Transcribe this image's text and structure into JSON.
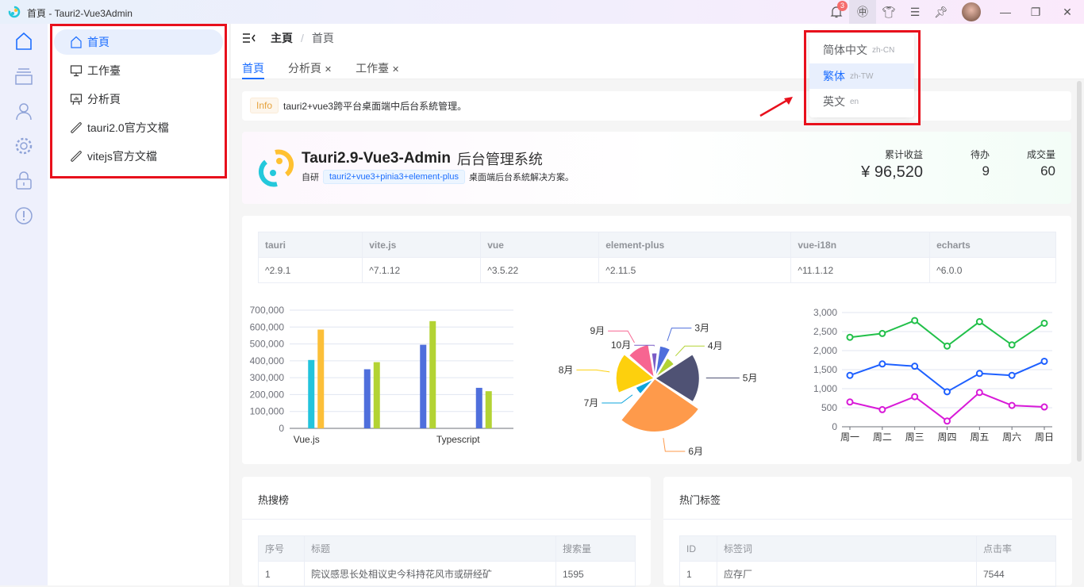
{
  "window": {
    "title": "首頁 - Tauri2-Vue3Admin",
    "notification_count": "3"
  },
  "toolbar": {
    "icons": [
      "bell-icon",
      "language-icon",
      "skin-icon",
      "settings-icon",
      "pin-icon",
      "avatar",
      "minimize-icon",
      "maximize-icon",
      "close-icon"
    ]
  },
  "rail": {
    "icons": [
      "home-icon",
      "layers-icon",
      "user-icon",
      "gear-icon",
      "lock-icon",
      "info-icon"
    ]
  },
  "sidebar": {
    "items": [
      {
        "label": "首頁",
        "icon": "home-icon",
        "active": true
      },
      {
        "label": "工作臺",
        "icon": "monitor-icon"
      },
      {
        "label": "分析頁",
        "icon": "presentation-icon"
      },
      {
        "label": "tauri2.0官方文檔",
        "icon": "link-icon"
      },
      {
        "label": "vitejs官方文檔",
        "icon": "link-icon"
      }
    ]
  },
  "breadcrumb": [
    "主頁",
    "首頁"
  ],
  "tabs": [
    {
      "label": "首頁",
      "active": true
    },
    {
      "label": "分析頁",
      "closable": true
    },
    {
      "label": "工作臺",
      "closable": true
    }
  ],
  "lang_menu": {
    "items": [
      {
        "label": "简体中文",
        "code": "zh-CN"
      },
      {
        "label": "繁体",
        "code": "zh-TW",
        "active": true
      },
      {
        "label": "英文",
        "code": "en"
      }
    ]
  },
  "info": {
    "tag": "Info",
    "text": "tauri2+vue3跨平台桌面端中后台系統管理。"
  },
  "hero": {
    "title_bold": "Tauri2.9-Vue3-Admin",
    "title_rest": "后台管理系统",
    "desc_prefix": "自研",
    "desc_tag": "tauri2+vue3+pinia3+element-plus",
    "desc_suffix": "桌面端后台系統解决方案。",
    "stats": [
      {
        "label": "累计收益",
        "value": "¥ 96,520"
      },
      {
        "label": "待办",
        "value": "9"
      },
      {
        "label": "成交量",
        "value": "60"
      }
    ]
  },
  "versions": {
    "headers": [
      "tauri",
      "vite.js",
      "vue",
      "element-plus",
      "vue-i18n",
      "echarts"
    ],
    "values": [
      "^2.9.1",
      "^7.1.12",
      "^3.5.22",
      "^2.11.5",
      "^11.1.12",
      "^6.0.0"
    ]
  },
  "chart_data": [
    {
      "type": "bar",
      "categories": [
        "Vue.js",
        "",
        "Typescript",
        ""
      ],
      "ylim": [
        0,
        700000
      ],
      "yticks": [
        "0",
        "100,000",
        "200,000",
        "300,000",
        "400,000",
        "500,000",
        "600,000",
        "700,000"
      ],
      "grid": true,
      "groups": [
        [
          {
            "v": 405000,
            "c": "#22c4dc"
          },
          {
            "v": 585000,
            "c": "#fcbf38"
          }
        ],
        [
          {
            "v": 350000,
            "c": "#4f6fdc"
          },
          {
            "v": 392000,
            "c": "#b3d334"
          }
        ],
        [
          {
            "v": 495000,
            "c": "#4f6fdc"
          },
          {
            "v": 635000,
            "c": "#b3d334"
          }
        ],
        [
          {
            "v": 240000,
            "c": "#4f6fdc"
          },
          {
            "v": 220000,
            "c": "#b3d334"
          }
        ]
      ]
    },
    {
      "type": "pie",
      "rose": true,
      "slices": [
        {
          "name": "3月",
          "value": 32,
          "color": "#4f6fdc"
        },
        {
          "name": "4月",
          "value": 20,
          "color": "#b3d334"
        },
        {
          "name": "5月",
          "value": 48,
          "color": "#4f5274"
        },
        {
          "name": "6月",
          "value": 60,
          "color": "#fe9a4b"
        },
        {
          "name": "7月",
          "value": 16,
          "color": "#0ea5dc"
        },
        {
          "name": "8月",
          "value": 40,
          "color": "#fdd00d"
        },
        {
          "name": "9月",
          "value": 34,
          "color": "#f76591"
        },
        {
          "name": "10月",
          "value": 22,
          "color": "#7a5cc6"
        }
      ]
    },
    {
      "type": "line",
      "categories": [
        "周一",
        "周二",
        "周三",
        "周四",
        "周五",
        "周六",
        "周日"
      ],
      "ylim": [
        0,
        3000
      ],
      "yticks": [
        "0",
        "500",
        "1,000",
        "1,500",
        "2,000",
        "2,500",
        "3,000"
      ],
      "grid": true,
      "series": [
        {
          "values": [
            2350,
            2450,
            2790,
            2120,
            2760,
            2150,
            2720
          ],
          "color": "#22c04a"
        },
        {
          "values": [
            1350,
            1650,
            1590,
            920,
            1400,
            1350,
            1720
          ],
          "color": "#1e60ff"
        },
        {
          "values": [
            650,
            450,
            790,
            150,
            900,
            560,
            520
          ],
          "color": "#d81ad8"
        }
      ]
    }
  ],
  "hot_search": {
    "title": "热搜榜",
    "headers": [
      "序号",
      "标题",
      "搜索量"
    ],
    "rows": [
      [
        "1",
        "院议感思长处相议史今科持花风市或研经矿",
        "1595"
      ]
    ]
  },
  "hot_tags": {
    "title": "热门标签",
    "headers": [
      "ID",
      "标签词",
      "点击率"
    ],
    "rows": [
      [
        "1",
        "应存厂",
        "7544"
      ]
    ]
  }
}
